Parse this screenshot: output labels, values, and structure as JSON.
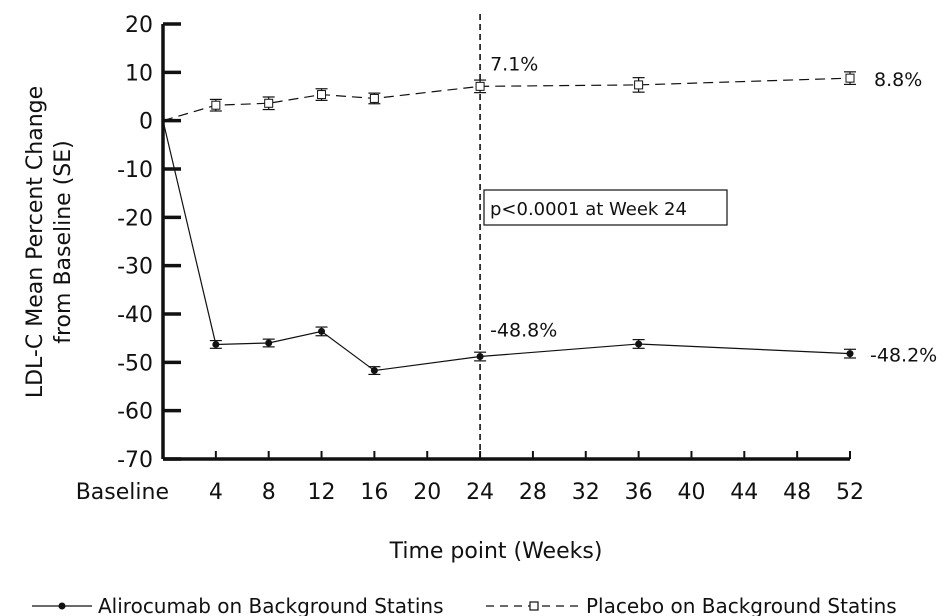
{
  "chart_data": {
    "type": "line",
    "xlabel": "Time point (Weeks)",
    "ylabel_line1": "LDL-C Mean Percent Change",
    "ylabel_line2": "from Baseline (SE)",
    "ylim": [
      -70,
      20
    ],
    "yticks": [
      20,
      10,
      0,
      -10,
      -20,
      -30,
      -40,
      -50,
      -60,
      -70
    ],
    "xlim": [
      0,
      52
    ],
    "xticks": [
      {
        "value": 0,
        "label": "Baseline"
      },
      {
        "value": 4,
        "label": "4"
      },
      {
        "value": 8,
        "label": "8"
      },
      {
        "value": 12,
        "label": "12"
      },
      {
        "value": 16,
        "label": "16"
      },
      {
        "value": 20,
        "label": "20"
      },
      {
        "value": 24,
        "label": "24"
      },
      {
        "value": 28,
        "label": "28"
      },
      {
        "value": 32,
        "label": "32"
      },
      {
        "value": 36,
        "label": "36"
      },
      {
        "value": 40,
        "label": "40"
      },
      {
        "value": 44,
        "label": "44"
      },
      {
        "value": 48,
        "label": "48"
      },
      {
        "value": 52,
        "label": "52"
      }
    ],
    "grid": false,
    "legend_position": "bottom",
    "series": [
      {
        "name": "Alirocumab on Background Statins",
        "line_style": "solid",
        "marker": "filled-circle",
        "x": [
          0,
          4,
          8,
          12,
          16,
          24,
          36,
          52
        ],
        "y": [
          0,
          -46.3,
          -46.0,
          -43.6,
          -51.7,
          -48.8,
          -46.2,
          -48.2
        ],
        "se": [
          0,
          0.8,
          0.8,
          0.9,
          0.8,
          0.9,
          0.9,
          0.9
        ]
      },
      {
        "name": "Placebo on Background Statins",
        "line_style": "dashed",
        "marker": "open-square",
        "x": [
          0,
          4,
          8,
          12,
          16,
          24,
          36,
          52
        ],
        "y": [
          0,
          3.2,
          3.6,
          5.4,
          4.6,
          7.1,
          7.4,
          8.8
        ],
        "se": [
          0,
          1.2,
          1.3,
          1.2,
          1.1,
          1.3,
          1.5,
          1.3
        ]
      }
    ],
    "reference_line": {
      "x": 24,
      "style": "dashed"
    },
    "annotations": [
      {
        "text": "7.1%",
        "x": 24,
        "y": 7.1
      },
      {
        "text": "-48.8%",
        "x": 24,
        "y": -48.8
      },
      {
        "text": "8.8%",
        "x": 52,
        "y": 8.8
      },
      {
        "text": "-48.2%",
        "x": 52,
        "y": -48.2
      }
    ],
    "boxed_note": "p<0.0001 at Week 24"
  }
}
